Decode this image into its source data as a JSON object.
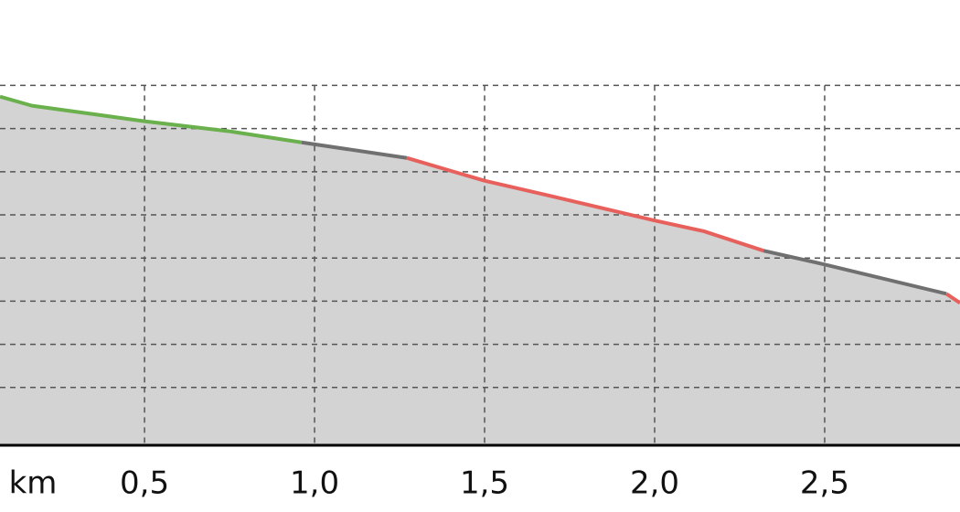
{
  "chart_data": {
    "type": "area",
    "x_label": "km",
    "segments": [
      {
        "color": "#6ab04c",
        "x": [
          0.075,
          0.169,
          0.5,
          0.747,
          0.962
        ],
        "values": [
          217.4,
          215.3,
          211.7,
          209.4,
          206.8
        ]
      },
      {
        "color": "#707070",
        "x": [
          0.962,
          1.271
        ],
        "values": [
          206.8,
          203.2
        ]
      },
      {
        "color": "#e8605c",
        "x": [
          1.271,
          1.5,
          1.688,
          2.0,
          2.145,
          2.32
        ],
        "values": [
          203.2,
          197.9,
          194.5,
          188.7,
          186.2,
          181.7
        ]
      },
      {
        "color": "#707070",
        "x": [
          2.32,
          2.5,
          2.858
        ],
        "values": [
          181.7,
          178.5,
          171.7
        ]
      },
      {
        "color": "#e8605c",
        "x": [
          2.858,
          2.898
        ],
        "values": [
          171.7,
          169.6
        ]
      }
    ],
    "fill": "#d3d3d3",
    "xlim": [
      0.075,
      2.898
    ],
    "ylim": [
      136.6,
      239.8
    ],
    "xticks": [
      {
        "value": 0.5,
        "label": "0,5"
      },
      {
        "value": 1.0,
        "label": "1,0"
      },
      {
        "value": 1.5,
        "label": "1,5"
      },
      {
        "value": 2.0,
        "label": "2,0"
      },
      {
        "value": 2.5,
        "label": "2,5"
      }
    ],
    "ygrid": [
      150,
      160,
      170,
      180,
      190,
      200,
      210,
      220
    ],
    "grid": true
  }
}
